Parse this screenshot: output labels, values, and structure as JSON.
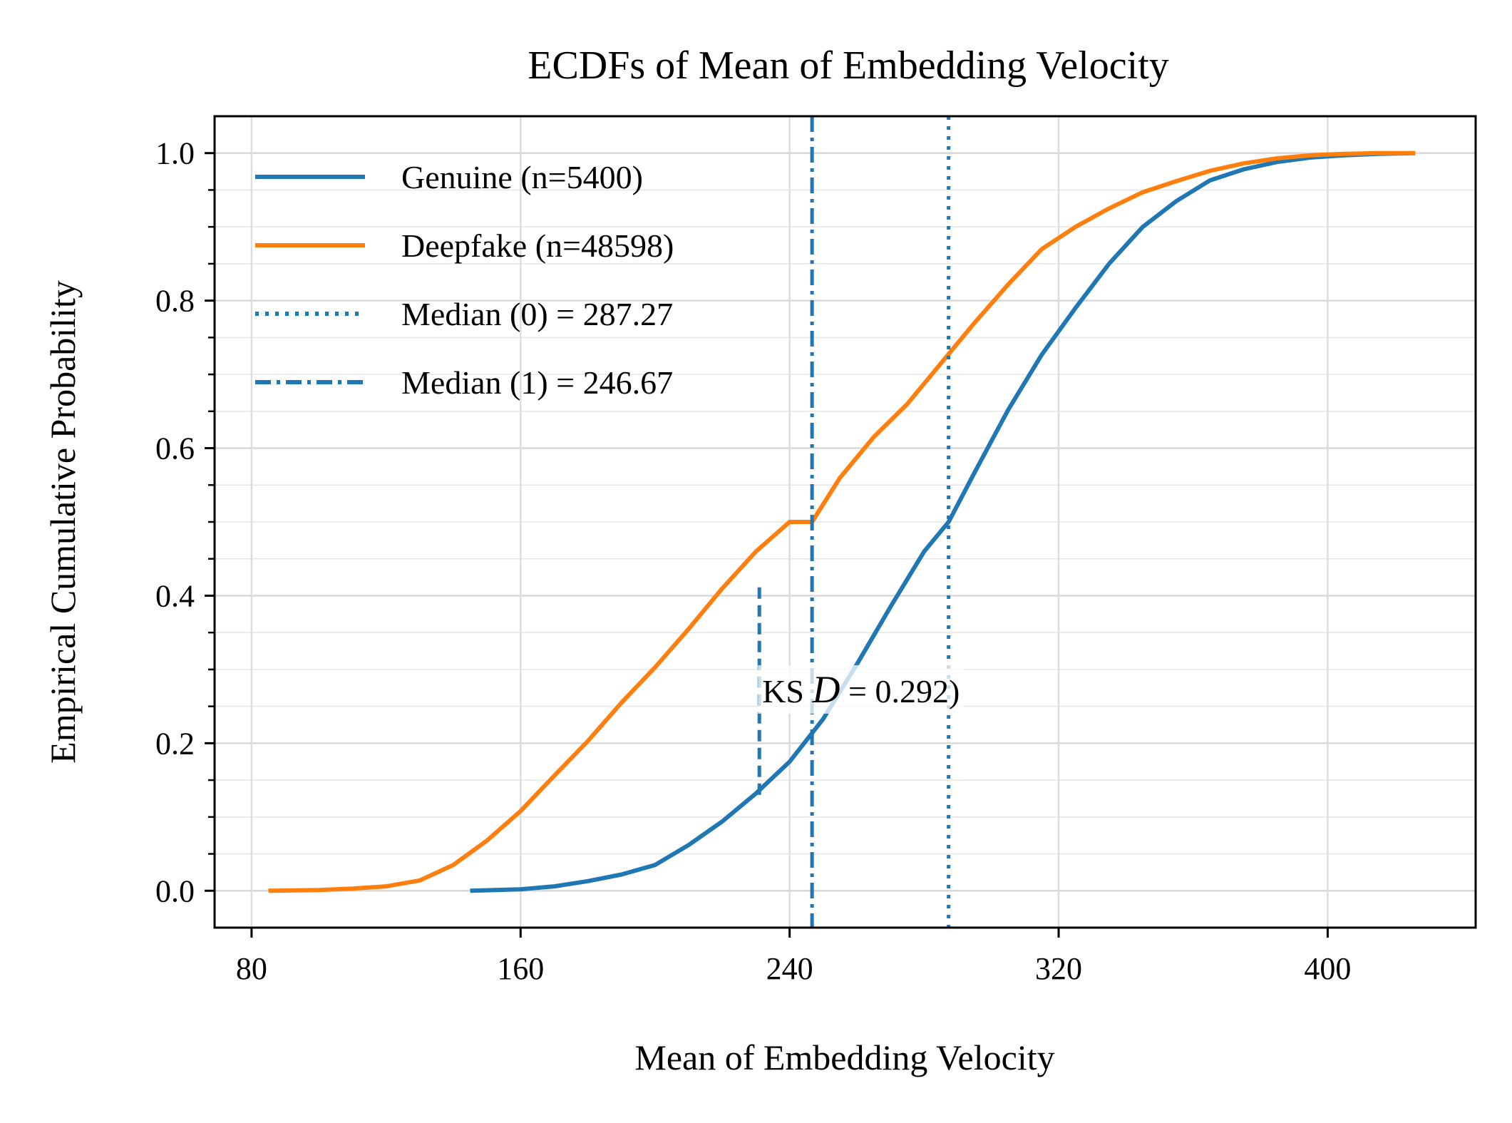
{
  "chart_data": {
    "type": "line",
    "title": "ECDFs of Mean of Embedding Velocity",
    "xlabel": "Mean of Embedding Velocity",
    "ylabel": "Empirical Cumulative Probability",
    "xlim": [
      69,
      444
    ],
    "ylim": [
      -0.05,
      1.05
    ],
    "xticks": [
      80,
      160,
      240,
      320,
      400
    ],
    "xtick_labels": [
      "80",
      "160",
      "240",
      "320",
      "400"
    ],
    "yticks": [
      0.0,
      0.2,
      0.4,
      0.6,
      0.8,
      1.0
    ],
    "ytick_labels": [
      "0.0",
      "0.2",
      "0.4",
      "0.6",
      "0.8",
      "1.0"
    ],
    "grid": true,
    "legend_position": "top-left",
    "series": [
      {
        "name": "Genuine (n=5400)",
        "color": "#1f77b4",
        "style": "solid",
        "x": [
          145,
          160,
          170,
          180,
          190,
          200,
          210,
          220,
          230,
          240,
          250,
          260,
          270,
          280,
          287.27,
          295,
          305,
          315,
          325,
          335,
          345,
          355,
          365,
          375,
          385,
          395,
          405,
          415,
          426
        ],
        "y": [
          0.0,
          0.002,
          0.006,
          0.013,
          0.022,
          0.035,
          0.062,
          0.094,
          0.132,
          0.175,
          0.233,
          0.307,
          0.385,
          0.46,
          0.5,
          0.567,
          0.652,
          0.727,
          0.79,
          0.85,
          0.9,
          0.935,
          0.963,
          0.978,
          0.988,
          0.994,
          0.997,
          0.999,
          1.0
        ]
      },
      {
        "name": "Deepfake (n=48598)",
        "color": "#ff7f0e",
        "style": "solid",
        "x": [
          85,
          100,
          110,
          120,
          130,
          140,
          150,
          160,
          170,
          180,
          190,
          200,
          210,
          220,
          230,
          240,
          246.67,
          255,
          265,
          275,
          285,
          295,
          305,
          315,
          325,
          335,
          345,
          355,
          365,
          375,
          385,
          395,
          405,
          415,
          426
        ],
        "y": [
          0.0,
          0.001,
          0.003,
          0.006,
          0.014,
          0.035,
          0.068,
          0.108,
          0.156,
          0.203,
          0.255,
          0.303,
          0.355,
          0.41,
          0.46,
          0.5,
          0.5,
          0.56,
          0.615,
          0.66,
          0.715,
          0.77,
          0.822,
          0.87,
          0.9,
          0.925,
          0.947,
          0.962,
          0.976,
          0.986,
          0.993,
          0.997,
          0.999,
          1.0,
          1.0
        ]
      }
    ],
    "reference_lines": [
      {
        "name": "Median (0) = 287.27",
        "x": 287.27,
        "style": "dotted",
        "color": "#1f77b4"
      },
      {
        "name": "Median (1) = 246.67",
        "x": 246.67,
        "style": "dashdot",
        "color": "#1f77b4"
      }
    ],
    "ks_line": {
      "x": 231,
      "y0": 0.13,
      "y1": 0.42
    },
    "annotation": {
      "prefix": "KS ",
      "symbol": "D",
      "suffix": " = 0.292)",
      "x": 231,
      "y": 0.27
    }
  }
}
